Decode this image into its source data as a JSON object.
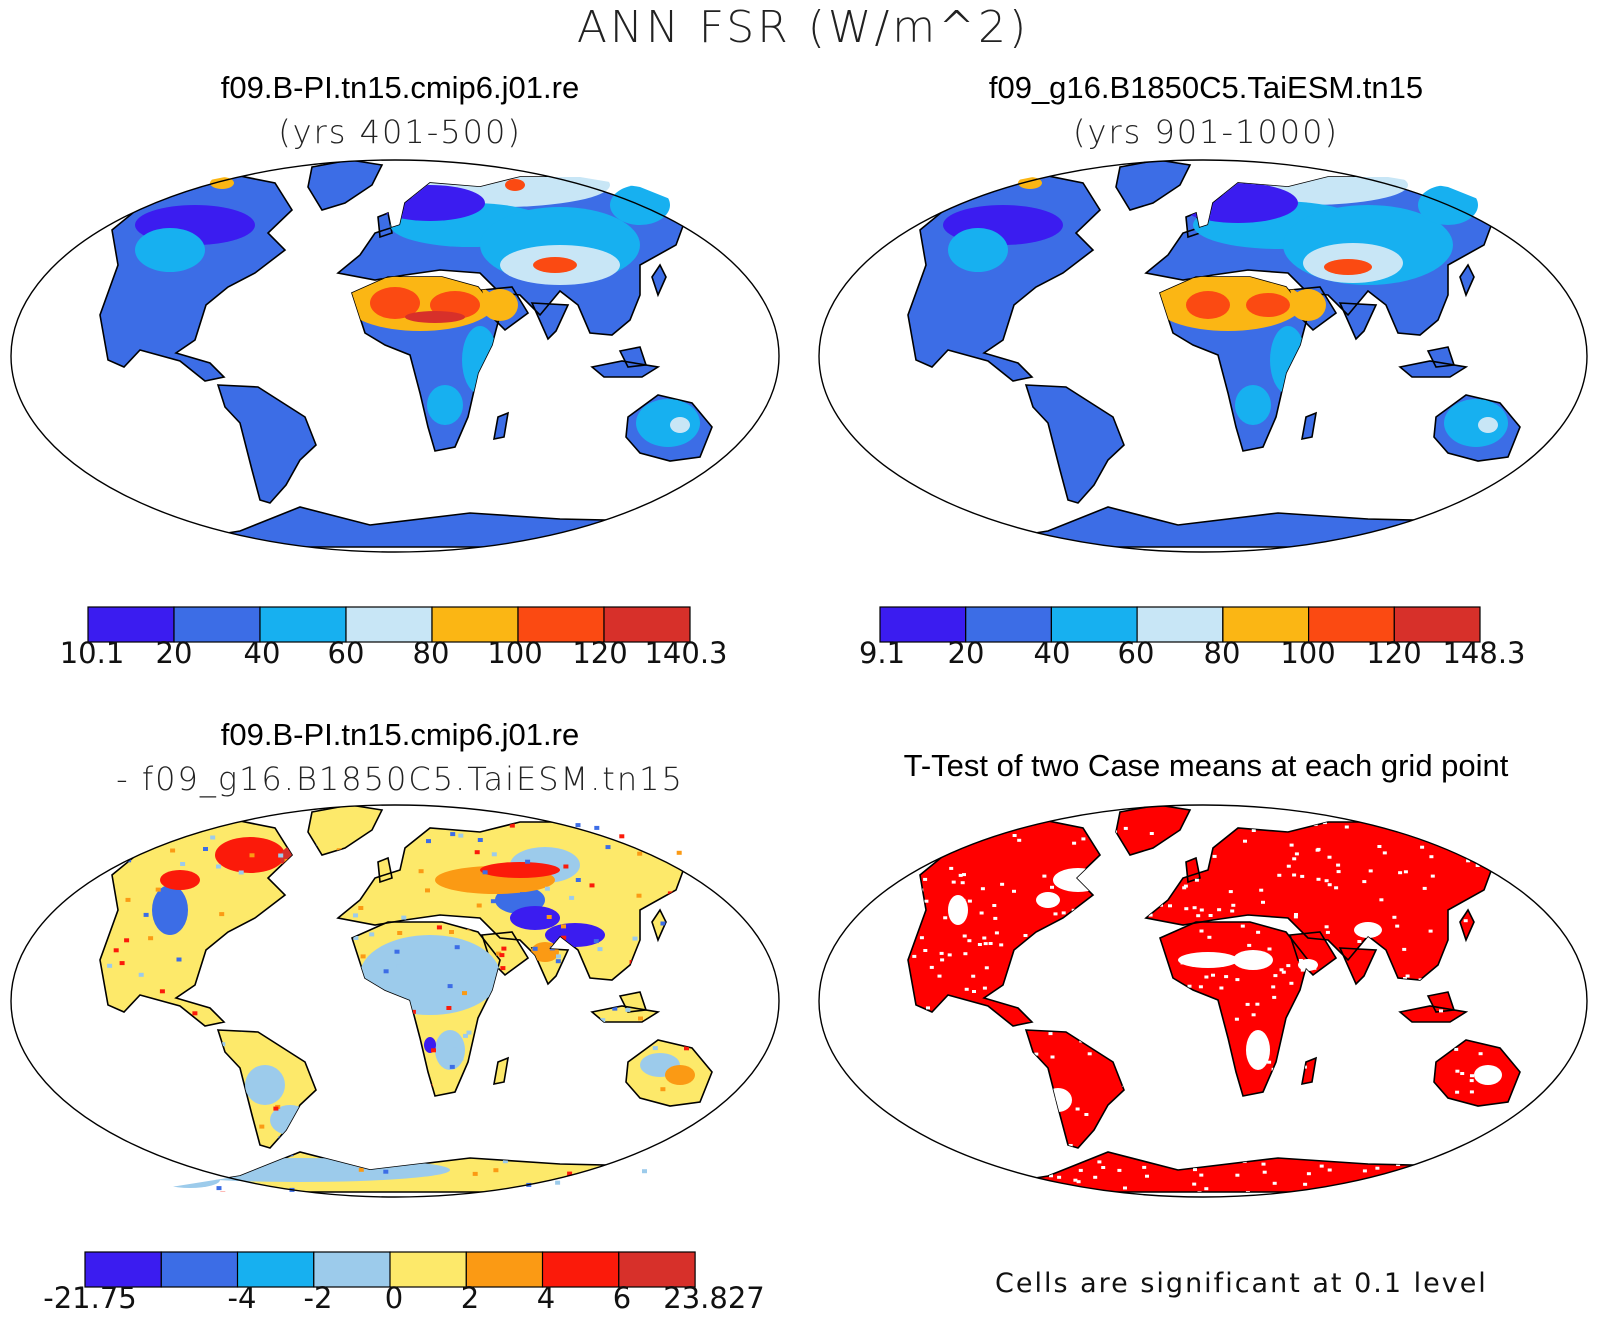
{
  "title": "ANN FSR (W/m^2)",
  "panels": [
    {
      "title": "f09.B-PI.tn15.cmip6.j01.re",
      "subtitle": "(yrs 401-500)",
      "colorbar": {
        "colors": [
          "#3b1cf0",
          "#3c6de6",
          "#17b0f0",
          "#c8e6f6",
          "#fbb614",
          "#fb4a12",
          "#d7302a"
        ],
        "labels": [
          "10.1",
          "20",
          "40",
          "60",
          "80",
          "100",
          "120",
          "140.3"
        ]
      }
    },
    {
      "title": "f09_g16.B1850C5.TaiESM.tn15",
      "subtitle": "(yrs 901-1000)",
      "colorbar": {
        "colors": [
          "#3b1cf0",
          "#3c6de6",
          "#17b0f0",
          "#c8e6f6",
          "#fbb614",
          "#fb4a12",
          "#d7302a"
        ],
        "labels": [
          "9.1",
          "20",
          "40",
          "60",
          "80",
          "100",
          "120",
          "148.3"
        ]
      }
    },
    {
      "title": "f09.B-PI.tn15.cmip6.j01.re",
      "subtitle": "- f09_g16.B1850C5.TaiESM.tn15",
      "colorbar": {
        "colors": [
          "#3b1cf0",
          "#3c6de6",
          "#17b0f0",
          "#9ccbeb",
          "#fde96a",
          "#fb9a14",
          "#fb1a0a",
          "#d7302a"
        ],
        "labels": [
          "-21.75",
          "",
          "-4",
          "-2",
          "0",
          "2",
          "4",
          "6",
          "23.827"
        ]
      }
    },
    {
      "title": "T-Test of two Case means at each grid point",
      "footnote": "Cells are significant at 0.1 level"
    }
  ],
  "colors": {
    "ocean": "#ffffff",
    "significant": "#ff0000",
    "coast": "#000000"
  }
}
